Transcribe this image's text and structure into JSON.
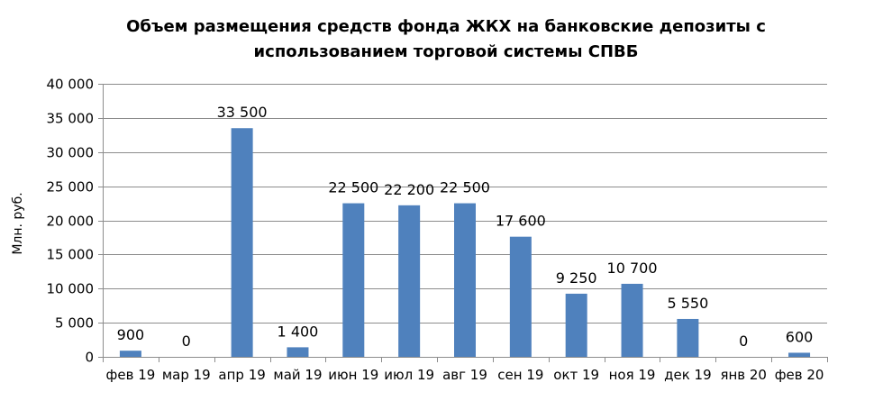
{
  "chart_data": {
    "type": "bar",
    "title_lines": [
      "Объем размещения средств фонда ЖКХ на банковские депозиты с",
      "использованием торговой системы СПВБ"
    ],
    "ylabel": "Млн. руб.",
    "xlabel": "",
    "categories": [
      "фев 19",
      "мар 19",
      "апр 19",
      "май 19",
      "июн 19",
      "июл 19",
      "авг 19",
      "сен 19",
      "окт 19",
      "ноя 19",
      "дек 19",
      "янв 20",
      "фев 20"
    ],
    "values": [
      900,
      0,
      33500,
      1400,
      22500,
      22200,
      22500,
      17600,
      9250,
      10700,
      5550,
      0,
      600
    ],
    "value_labels": [
      "900",
      "0",
      "33 500",
      "1 400",
      "22 500",
      "22 200",
      "22 500",
      "17 600",
      "9 250",
      "10 700",
      "5 550",
      "0",
      "600"
    ],
    "ylim": [
      0,
      40000
    ],
    "y_ticks": [
      0,
      5000,
      10000,
      15000,
      20000,
      25000,
      30000,
      35000,
      40000
    ],
    "y_tick_labels": [
      "0",
      "5 000",
      "10 000",
      "15 000",
      "20 000",
      "25 000",
      "30 000",
      "35 000",
      "40 000"
    ],
    "grid": true,
    "legend": "none",
    "bar_color": "#4F81BD"
  }
}
